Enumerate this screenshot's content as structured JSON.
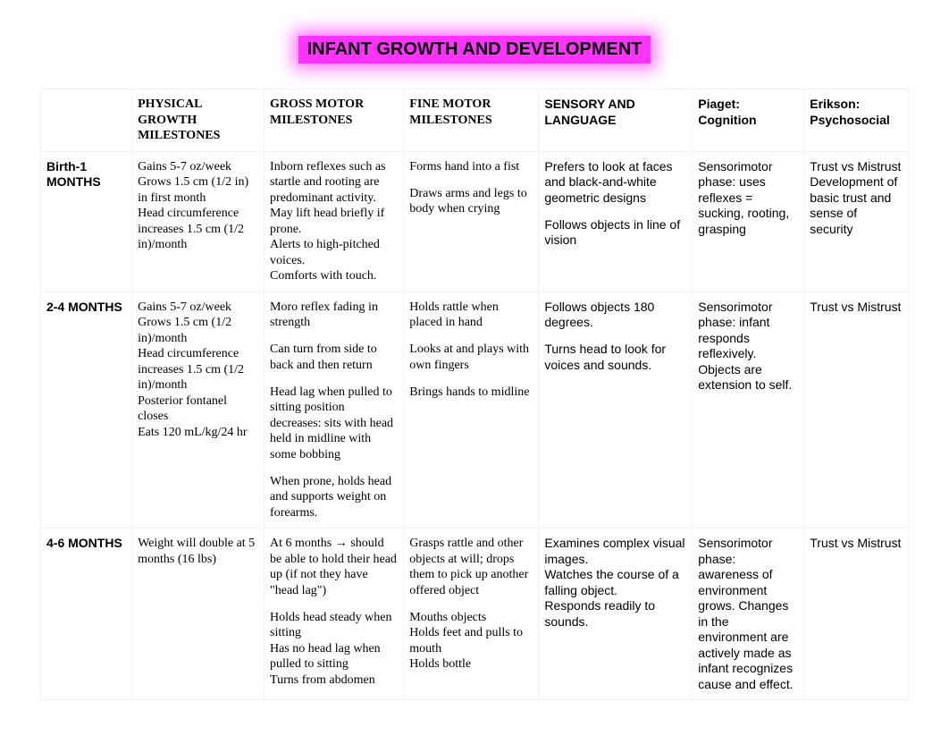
{
  "title": "INFANT GROWTH AND DEVELOPMENT",
  "headers": {
    "blank": "",
    "physical": "PHYSICAL GROWTH MILESTONES",
    "gross": "GROSS MOTOR MILESTONES",
    "fine": "FINE MOTOR MILESTONES",
    "sensory": "SENSORY AND LANGUAGE",
    "piaget": "Piaget: Cognition",
    "erikson": "Erikson: Psychosocial"
  },
  "rows": [
    {
      "age": "Birth-1 MONTHS",
      "physical": [
        "Gains 5-7 oz/week",
        "Grows 1.5 cm (1/2 in) in first month",
        "Head circumference increases 1.5 cm (1/2 in)/month"
      ],
      "gross": [
        "Inborn reflexes such as startle and rooting are predominant activity.",
        "May lift head briefly if prone.",
        "Alerts to high-pitched voices.",
        "Comforts with touch."
      ],
      "fine": [
        "Forms hand into a fist",
        "",
        "Draws arms and legs to body when crying"
      ],
      "sensory": [
        "Prefers to look at faces and black-and-white geometric designs",
        "",
        "Follows objects in line of vision"
      ],
      "piaget": [
        "Sensorimotor phase: uses reflexes = sucking, rooting, grasping"
      ],
      "erikson": [
        "Trust vs Mistrust",
        "Development of basic trust and sense of security"
      ]
    },
    {
      "age": "2-4 MONTHS",
      "physical": [
        "Gains 5-7 oz/week",
        "Grows 1.5 cm (1/2 in)/month",
        "Head circumference increases 1.5 cm (1/2 in)/month",
        "Posterior fontanel closes",
        "Eats 120 mL/kg/24 hr"
      ],
      "gross": [
        "Moro reflex fading in strength",
        "",
        "Can turn from side to back and then return",
        "",
        "Head lag when pulled to sitting position decreases: sits with head held in midline with some bobbing",
        "",
        "When prone, holds head and supports weight on forearms."
      ],
      "fine": [
        "Holds rattle when placed in hand",
        "",
        "Looks at and plays with own fingers",
        "",
        "Brings hands to midline"
      ],
      "sensory": [
        "Follows objects 180 degrees.",
        "",
        "Turns head to look for voices and sounds."
      ],
      "piaget": [
        "Sensorimotor phase: infant responds reflexively. Objects are extension to self."
      ],
      "erikson": [
        "Trust vs Mistrust"
      ]
    },
    {
      "age": "4-6 MONTHS",
      "physical": [
        "Weight will double at 5 months (16 lbs)"
      ],
      "gross": [
        "At 6 months → should be able to hold their head up (if not they have \"head lag\")",
        "",
        "Holds head steady when sitting",
        "Has no head lag when pulled to sitting",
        "Turns from abdomen"
      ],
      "fine": [
        "Grasps rattle and other objects at will; drops them to pick up another offered object",
        "",
        "Mouths objects",
        "Holds feet and pulls to mouth",
        "Holds bottle"
      ],
      "sensory": [
        "Examines complex visual images.",
        "Watches the course of a falling object.",
        "Responds readily to sounds."
      ],
      "piaget": [
        "Sensorimotor phase: awareness of environment grows. Changes in the environment are actively made as infant recognizes cause and effect."
      ],
      "erikson": [
        "Trust vs Mistrust"
      ]
    }
  ],
  "styling": {
    "title_highlight_color": "#ff33ff",
    "title_glow_color": "rgba(255,51,255,0.7)",
    "title_text_color": "#000000",
    "body_bg": "#ffffff",
    "cell_border": "#f3f3f3",
    "serif_font": "Times New Roman",
    "sans_font": "Arial",
    "base_font_size": 14,
    "title_font_size": 20
  }
}
